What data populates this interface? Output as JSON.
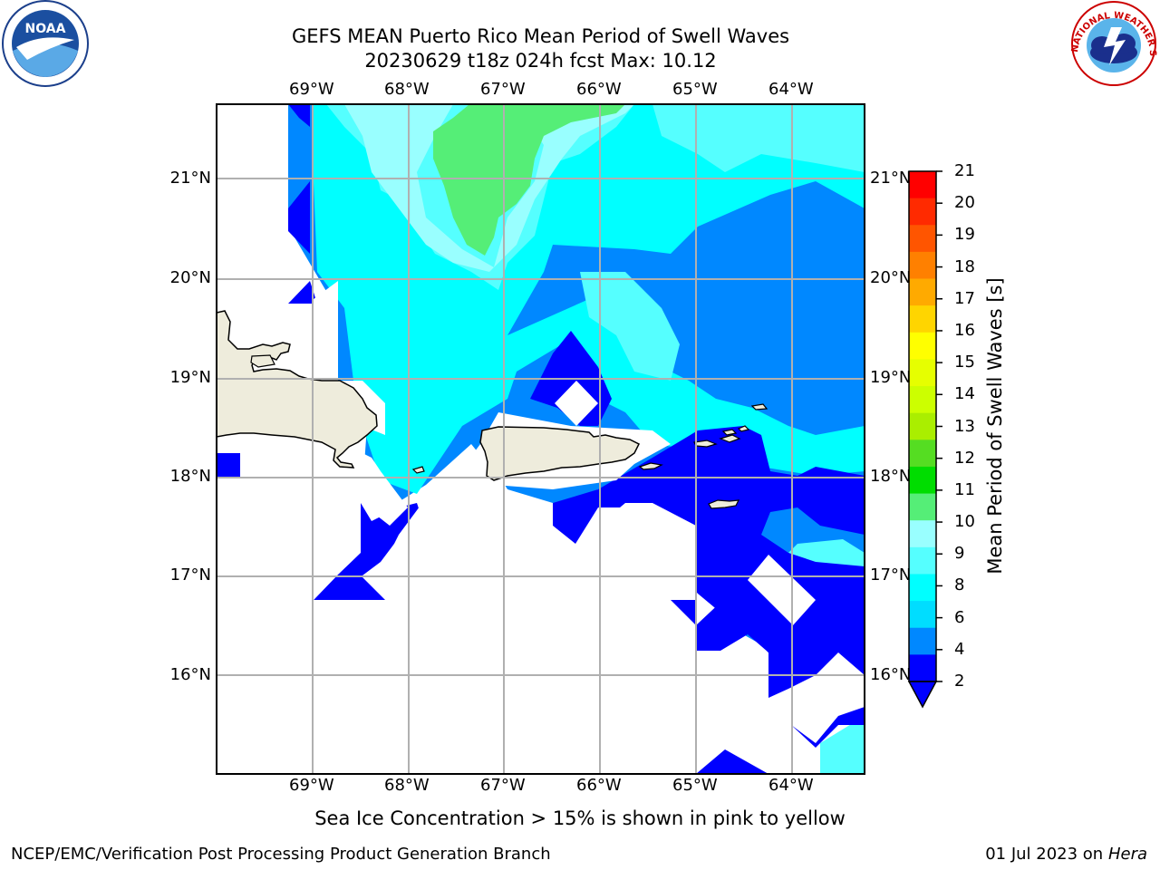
{
  "title": {
    "line1": "GEFS MEAN Puerto Rico Mean Period of Swell Waves",
    "line2": "20230629 t18z 024h fcst   Max: 10.12"
  },
  "logos": {
    "left": "noaa-logo",
    "right": "national-weather-service-logo",
    "right_text": "NATIONAL WEATHER SERVICE"
  },
  "map": {
    "lon_labels": [
      "69°W",
      "68°W",
      "67°W",
      "66°W",
      "65°W",
      "64°W"
    ],
    "lat_labels": [
      "21°N",
      "20°N",
      "19°N",
      "18°N",
      "17°N",
      "16°N"
    ],
    "land_color": "#eeecdc",
    "grid_color": "#b0b0b0"
  },
  "colorbar": {
    "title": "Mean Period of Swell Waves [s]",
    "ticks": [
      "21",
      "20",
      "19",
      "18",
      "17",
      "16",
      "15",
      "14",
      "13",
      "12",
      "11",
      "10",
      "9",
      "8",
      "6",
      "4",
      "2"
    ],
    "colors": [
      "#ff0000",
      "#ff2a00",
      "#ff5500",
      "#ff8000",
      "#ffaa00",
      "#ffd500",
      "#ffff00",
      "#e6ff00",
      "#ccff00",
      "#aaee00",
      "#55dd22",
      "#00dd00",
      "#55ee77",
      "#99ffff",
      "#55ffff",
      "#00ffff",
      "#00ddff",
      "#0088ff",
      "#0000ff"
    ]
  },
  "notes": {
    "sea_ice": "Sea Ice Concentration > 15% is shown in pink to yellow",
    "credit_left": "NCEP/EMC/Verification Post Processing Product Generation Branch",
    "credit_date": "01 Jul 2023 on ",
    "credit_machine": "Hera"
  }
}
